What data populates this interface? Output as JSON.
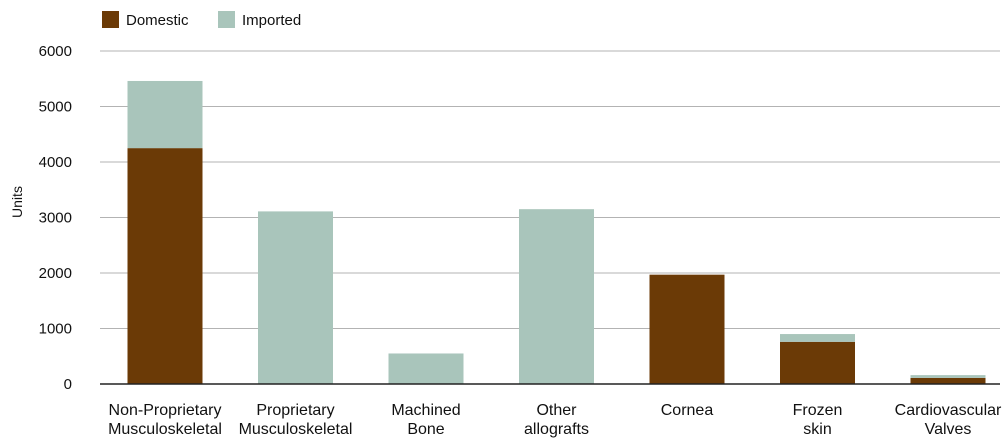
{
  "chart_data": {
    "type": "bar",
    "stacked": true,
    "categories": [
      [
        "Non-Proprietary",
        "Musculoskeletal"
      ],
      [
        "Proprietary",
        "Musculoskeletal"
      ],
      [
        "Machined",
        "Bone"
      ],
      [
        "Other",
        "allografts"
      ],
      [
        "Cornea"
      ],
      [
        "Frozen",
        "skin"
      ],
      [
        "Cardiovascular",
        "Valves"
      ]
    ],
    "series": [
      {
        "name": "Domestic",
        "color": "#6b3a06",
        "values": [
          4250,
          0,
          0,
          0,
          1970,
          760,
          110
        ]
      },
      {
        "name": "Imported",
        "color": "#a9c5bb",
        "values": [
          1210,
          3110,
          550,
          3150,
          0,
          140,
          50
        ]
      }
    ],
    "ylabel": "Units",
    "xlabel": "",
    "ylim": [
      0,
      6000
    ],
    "yticks": [
      0,
      1000,
      2000,
      3000,
      4000,
      5000,
      6000
    ],
    "grid": true,
    "legend_position": "top-left"
  }
}
